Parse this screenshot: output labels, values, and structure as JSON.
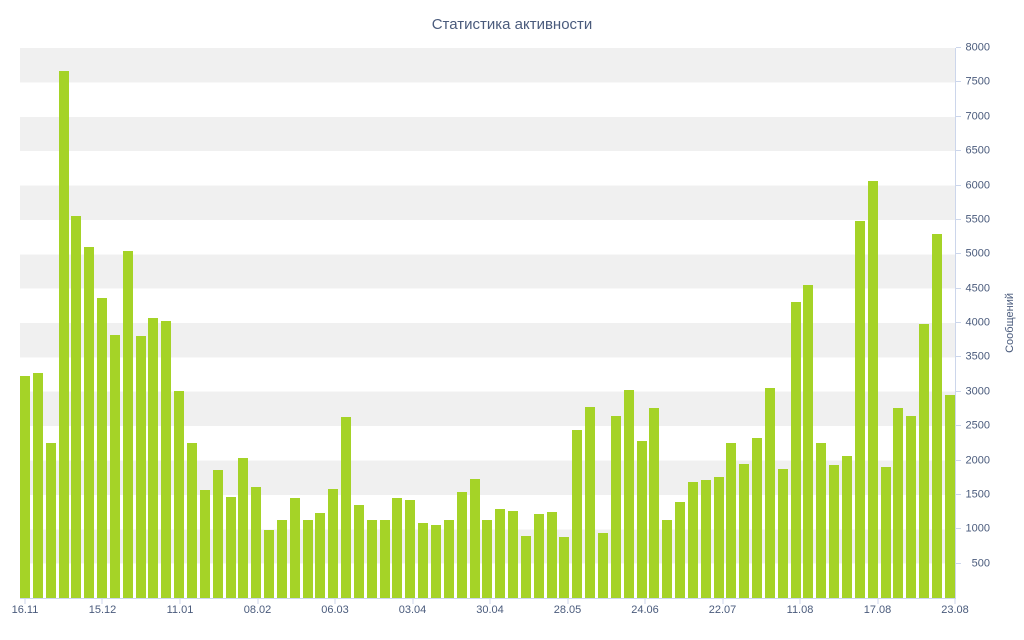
{
  "chart_data": {
    "type": "bar",
    "title": "Статистика активности",
    "ylabel": "Сообщений",
    "xlabel": "",
    "ylim": [
      0,
      8000
    ],
    "ytick_step": 500,
    "yticks": [
      500,
      1000,
      1500,
      2000,
      2500,
      3000,
      3500,
      4000,
      4500,
      5000,
      5500,
      6000,
      6500,
      7000,
      7500,
      8000
    ],
    "x_labels": [
      "16.11",
      "15.12",
      "11.01",
      "08.02",
      "06.03",
      "03.04",
      "30.04",
      "28.05",
      "24.06",
      "22.07",
      "11.08",
      "17.08",
      "23.08"
    ],
    "values": [
      3230,
      3280,
      2250,
      7670,
      5550,
      5100,
      4360,
      3830,
      5050,
      3810,
      4080,
      4030,
      3010,
      2250,
      1570,
      1860,
      1470,
      2040,
      1610,
      990,
      1130,
      1450,
      1140,
      1240,
      1590,
      2630,
      1350,
      1130,
      1140,
      1460,
      1430,
      1090,
      1060,
      1130,
      1540,
      1730,
      1140,
      1290,
      1260,
      900,
      1220,
      1250,
      890,
      2440,
      2780,
      950,
      2650,
      3030,
      2290,
      2770,
      1130,
      1400,
      1690,
      1720,
      1760,
      2250,
      1950,
      2330,
      3060,
      1870,
      4310,
      4550,
      2260,
      1930,
      2060,
      5490,
      6060,
      1900,
      2760,
      2650,
      3990,
      5290,
      2950
    ],
    "bar_color": "#a5d327",
    "band_color": "#f0f0f0",
    "label_color": "#4a5b7c",
    "axis_color": "#ccd6eb",
    "grid": "alternating horizontal bands",
    "legend": "none",
    "y_axis_position": "right"
  }
}
